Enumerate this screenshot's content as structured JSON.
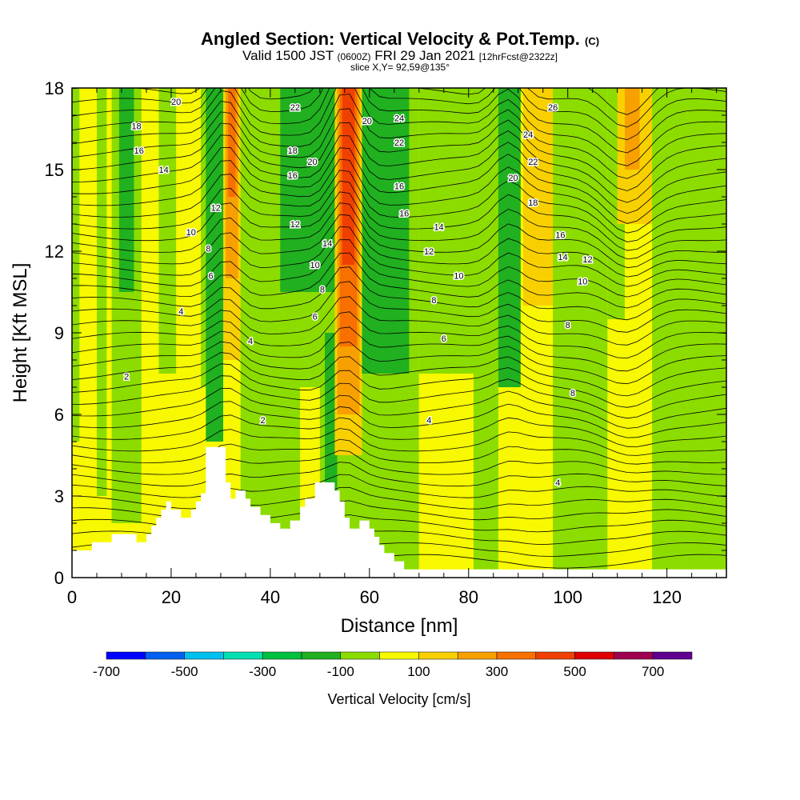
{
  "titles": {
    "main": "Angled Section: Vertical Velocity & Pot.Temp.",
    "main_units": "(C)",
    "valid_label": "Valid 1500 JST",
    "valid_utc": "(0600Z)",
    "valid_date": "FRI 29 Jan 2021",
    "forecast": "[12hrFcst@2322z]",
    "slice": "slice X,Y= 92,59@135°"
  },
  "chart_data": {
    "type": "heatmap",
    "title": "Angled Section: Vertical Velocity & Pot.Temp.",
    "xlabel": "Distance [nm]",
    "ylabel": "Height [Kft MSL]",
    "xlim": [
      0,
      132
    ],
    "ylim": [
      0,
      18
    ],
    "x_ticks": [
      0,
      20,
      40,
      60,
      80,
      100,
      120
    ],
    "x_tick_labels": [
      "0",
      "20",
      "40",
      "60",
      "80",
      "100",
      "120"
    ],
    "y_ticks": [
      0,
      3,
      6,
      9,
      12,
      15,
      18
    ],
    "y_tick_labels": [
      "0",
      "3",
      "6",
      "9",
      "12",
      "15",
      "18"
    ],
    "colorbar": {
      "label": "Vertical Velocity [cm/s]",
      "bins": [
        -700,
        -600,
        -500,
        -400,
        -300,
        -200,
        -100,
        0,
        100,
        200,
        300,
        400,
        500,
        600,
        700,
        800
      ],
      "colors": [
        "#0000ff",
        "#0060f0",
        "#00c0f0",
        "#00e0b0",
        "#00c040",
        "#20b020",
        "#8cdc00",
        "#f8f800",
        "#f8d000",
        "#f8a000",
        "#f87000",
        "#f04000",
        "#e00000",
        "#a00050",
        "#600090"
      ],
      "tick_labels": [
        "-700",
        "-500",
        "-300",
        "-100",
        "100",
        "300",
        "500",
        "700"
      ],
      "tick_values": [
        -700,
        -500,
        -300,
        -100,
        100,
        300,
        500,
        700
      ]
    },
    "field_background": "#f8f800",
    "velocity_bands": [
      {
        "x": 0,
        "w": 1.5,
        "top": 18,
        "bottom": 5.0,
        "color": "#8cdc00"
      },
      {
        "x": 5,
        "w": 2,
        "top": 18,
        "bottom": 3.0,
        "color": "#8cdc00"
      },
      {
        "x": 8,
        "w": 6,
        "top": 18,
        "bottom": 2.0,
        "color": "#8cdc00"
      },
      {
        "x": 9.5,
        "w": 3,
        "top": 18,
        "bottom": 10.5,
        "color": "#20b020"
      },
      {
        "x": 17.5,
        "w": 3.5,
        "top": 18,
        "bottom": 7.5,
        "color": "#8cdc00"
      },
      {
        "x": 26,
        "w": 4.5,
        "top": 18,
        "bottom": 7.0,
        "color": "#8cdc00"
      },
      {
        "x": 27,
        "w": 3.5,
        "top": 18,
        "bottom": 5.0,
        "color": "#20b020"
      },
      {
        "x": 30.5,
        "w": 3.5,
        "top": 18,
        "bottom": 8.0,
        "color": "#f8d000"
      },
      {
        "x": 31,
        "w": 2.5,
        "top": 18,
        "bottom": 11.0,
        "color": "#f8a000"
      },
      {
        "x": 31.5,
        "w": 1.5,
        "top": 18,
        "bottom": 14.0,
        "color": "#f87000"
      },
      {
        "x": 34,
        "w": 36,
        "top": 18,
        "bottom": 0.3,
        "color": "#8cdc00"
      },
      {
        "x": 42,
        "w": 11,
        "top": 18,
        "bottom": 10.5,
        "color": "#20b020"
      },
      {
        "x": 46,
        "w": 4,
        "top": 7.0,
        "bottom": 2.5,
        "color": "#f8f800"
      },
      {
        "x": 51,
        "w": 2.5,
        "top": 9.0,
        "bottom": 2.5,
        "color": "#20b020"
      },
      {
        "x": 53,
        "w": 5.5,
        "top": 18,
        "bottom": 4.5,
        "color": "#f8d000"
      },
      {
        "x": 53.5,
        "w": 4.5,
        "top": 18,
        "bottom": 6.0,
        "color": "#f8a000"
      },
      {
        "x": 54,
        "w": 3.5,
        "top": 18,
        "bottom": 8.5,
        "color": "#f87000"
      },
      {
        "x": 54.5,
        "w": 2.5,
        "top": 18,
        "bottom": 11.5,
        "color": "#f04000"
      },
      {
        "x": 58.5,
        "w": 9.5,
        "top": 18,
        "bottom": 7.5,
        "color": "#20b020"
      },
      {
        "x": 70,
        "w": 6,
        "top": 7.5,
        "bottom": 0.3,
        "color": "#f8f800"
      },
      {
        "x": 70,
        "w": 16,
        "top": 18,
        "bottom": 7.5,
        "color": "#8cdc00"
      },
      {
        "x": 81,
        "w": 5,
        "top": 18,
        "bottom": 0.3,
        "color": "#8cdc00"
      },
      {
        "x": 86,
        "w": 4.5,
        "top": 18,
        "bottom": 7.0,
        "color": "#20b020"
      },
      {
        "x": 91,
        "w": 6,
        "top": 18,
        "bottom": 10.0,
        "color": "#f8d000"
      },
      {
        "x": 97,
        "w": 11,
        "top": 18,
        "bottom": 0.3,
        "color": "#8cdc00"
      },
      {
        "x": 108,
        "w": 3.5,
        "top": 18,
        "bottom": 9.5,
        "color": "#8cdc00"
      },
      {
        "x": 110,
        "w": 7,
        "top": 18,
        "bottom": 13.0,
        "color": "#f8d000"
      },
      {
        "x": 111.5,
        "w": 3,
        "top": 18,
        "bottom": 15.0,
        "color": "#f8a000"
      },
      {
        "x": 117,
        "w": 7,
        "top": 18,
        "bottom": 0.3,
        "color": "#8cdc00"
      },
      {
        "x": 124,
        "w": 8,
        "top": 18,
        "bottom": 0.3,
        "color": "#8cdc00"
      }
    ],
    "terrain": [
      [
        0,
        1.0
      ],
      [
        4,
        1.0
      ],
      [
        4,
        1.3
      ],
      [
        8,
        1.3
      ],
      [
        8,
        1.6
      ],
      [
        13,
        1.6
      ],
      [
        13,
        1.3
      ],
      [
        15,
        1.3
      ],
      [
        15,
        1.6
      ],
      [
        16,
        1.6
      ],
      [
        16,
        1.9
      ],
      [
        17,
        1.9
      ],
      [
        17,
        2.2
      ],
      [
        18,
        2.2
      ],
      [
        18,
        2.5
      ],
      [
        19,
        2.5
      ],
      [
        19,
        2.8
      ],
      [
        20,
        2.8
      ],
      [
        20,
        2.5
      ],
      [
        22,
        2.5
      ],
      [
        22,
        2.2
      ],
      [
        24,
        2.2
      ],
      [
        24,
        2.5
      ],
      [
        25,
        2.5
      ],
      [
        25,
        2.8
      ],
      [
        26,
        2.8
      ],
      [
        26,
        3.1
      ],
      [
        27,
        3.1
      ],
      [
        27,
        4.8
      ],
      [
        31,
        4.8
      ],
      [
        31,
        3.5
      ],
      [
        32,
        3.5
      ],
      [
        32,
        2.9
      ],
      [
        33,
        2.9
      ],
      [
        33,
        3.2
      ],
      [
        35,
        3.2
      ],
      [
        35,
        2.9
      ],
      [
        36,
        2.9
      ],
      [
        36,
        2.6
      ],
      [
        38,
        2.6
      ],
      [
        38,
        2.3
      ],
      [
        40,
        2.3
      ],
      [
        40,
        2.0
      ],
      [
        42,
        2.0
      ],
      [
        42,
        1.8
      ],
      [
        44,
        1.8
      ],
      [
        44,
        2.1
      ],
      [
        46,
        2.1
      ],
      [
        46,
        2.6
      ],
      [
        47,
        2.6
      ],
      [
        47,
        2.9
      ],
      [
        49,
        2.9
      ],
      [
        49,
        3.5
      ],
      [
        53,
        3.5
      ],
      [
        53,
        3.2
      ],
      [
        54,
        3.2
      ],
      [
        54,
        2.8
      ],
      [
        55,
        2.8
      ],
      [
        55,
        2.2
      ],
      [
        56,
        2.2
      ],
      [
        56,
        1.8
      ],
      [
        58,
        1.8
      ],
      [
        58,
        2.1
      ],
      [
        60,
        2.1
      ],
      [
        60,
        1.8
      ],
      [
        61,
        1.8
      ],
      [
        61,
        1.5
      ],
      [
        62,
        1.5
      ],
      [
        62,
        1.2
      ],
      [
        63,
        1.2
      ],
      [
        63,
        0.9
      ],
      [
        65,
        0.9
      ],
      [
        65,
        0.6
      ],
      [
        67,
        0.6
      ],
      [
        67,
        0.3
      ],
      [
        132,
        0.3
      ],
      [
        132,
        0
      ]
    ],
    "theta_contour_labels": [
      {
        "label": "20",
        "x": 21,
        "y": 17.5
      },
      {
        "label": "18",
        "x": 13,
        "y": 16.6
      },
      {
        "label": "16",
        "x": 13.5,
        "y": 15.7
      },
      {
        "label": "14",
        "x": 18.5,
        "y": 15.0
      },
      {
        "label": "12",
        "x": 29,
        "y": 13.6
      },
      {
        "label": "10",
        "x": 24,
        "y": 12.7
      },
      {
        "label": "8",
        "x": 27.5,
        "y": 12.1
      },
      {
        "label": "6",
        "x": 28,
        "y": 11.1
      },
      {
        "label": "4",
        "x": 22,
        "y": 9.8
      },
      {
        "label": "4",
        "x": 36,
        "y": 8.7
      },
      {
        "label": "2",
        "x": 11,
        "y": 7.4
      },
      {
        "label": "2",
        "x": 38.5,
        "y": 5.8
      },
      {
        "label": "22",
        "x": 45,
        "y": 17.3
      },
      {
        "label": "18",
        "x": 44.5,
        "y": 15.7
      },
      {
        "label": "20",
        "x": 48.5,
        "y": 15.3
      },
      {
        "label": "16",
        "x": 44.5,
        "y": 14.8
      },
      {
        "label": "12",
        "x": 45,
        "y": 13.0
      },
      {
        "label": "14",
        "x": 51.5,
        "y": 12.3
      },
      {
        "label": "10",
        "x": 49,
        "y": 11.5
      },
      {
        "label": "8",
        "x": 50.5,
        "y": 10.6
      },
      {
        "label": "6",
        "x": 49,
        "y": 9.6
      },
      {
        "label": "20",
        "x": 59.5,
        "y": 16.8
      },
      {
        "label": "24",
        "x": 66,
        "y": 16.9
      },
      {
        "label": "22",
        "x": 66,
        "y": 16.0
      },
      {
        "label": "16",
        "x": 66,
        "y": 14.4
      },
      {
        "label": "16",
        "x": 67,
        "y": 13.4
      },
      {
        "label": "14",
        "x": 74,
        "y": 12.9
      },
      {
        "label": "12",
        "x": 72,
        "y": 12.0
      },
      {
        "label": "10",
        "x": 78,
        "y": 11.1
      },
      {
        "label": "8",
        "x": 73,
        "y": 10.2
      },
      {
        "label": "6",
        "x": 75,
        "y": 8.8
      },
      {
        "label": "4",
        "x": 72,
        "y": 5.8
      },
      {
        "label": "26",
        "x": 97,
        "y": 17.3
      },
      {
        "label": "24",
        "x": 92,
        "y": 16.3
      },
      {
        "label": "22",
        "x": 93,
        "y": 15.3
      },
      {
        "label": "20",
        "x": 89,
        "y": 14.7
      },
      {
        "label": "18",
        "x": 93,
        "y": 13.8
      },
      {
        "label": "16",
        "x": 98.5,
        "y": 12.6
      },
      {
        "label": "14",
        "x": 99,
        "y": 11.8
      },
      {
        "label": "12",
        "x": 104,
        "y": 11.7
      },
      {
        "label": "10",
        "x": 103,
        "y": 10.9
      },
      {
        "label": "8",
        "x": 100,
        "y": 9.3
      },
      {
        "label": "8",
        "x": 101,
        "y": 6.8
      },
      {
        "label": "4",
        "x": 98,
        "y": 3.5
      }
    ]
  }
}
